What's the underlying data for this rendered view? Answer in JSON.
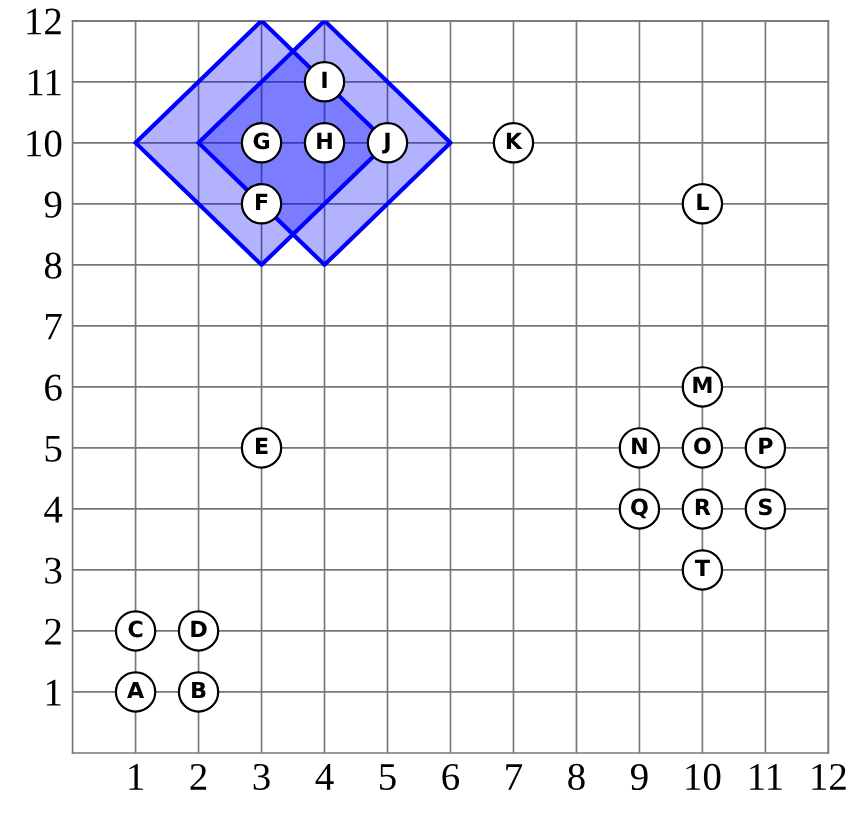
{
  "chart_data": {
    "type": "scatter",
    "xlim": [
      0,
      12
    ],
    "ylim": [
      0,
      12
    ],
    "xticks": [
      1,
      2,
      3,
      4,
      5,
      6,
      7,
      8,
      9,
      10,
      11,
      12
    ],
    "yticks": [
      1,
      2,
      3,
      4,
      5,
      6,
      7,
      8,
      9,
      10,
      11,
      12
    ],
    "grid": true,
    "series": [
      {
        "type": "area",
        "color": "#0000ff",
        "x": [
          1,
          3,
          5,
          3,
          1
        ],
        "values": [
          10,
          12,
          10,
          8,
          10
        ]
      },
      {
        "type": "area",
        "color": "#0000ff",
        "x": [
          2,
          4,
          6,
          4,
          2
        ],
        "values": [
          10,
          12,
          10,
          8,
          10
        ]
      },
      {
        "marker": "circle",
        "color": "#ffffff",
        "x": [
          1,
          2,
          1,
          2,
          3,
          3,
          3,
          4,
          4,
          5,
          7,
          10,
          10,
          9,
          10,
          11,
          9,
          10,
          11,
          10
        ],
        "values": [
          1,
          1,
          2,
          2,
          5,
          9,
          10,
          10,
          11,
          10,
          10,
          9,
          6,
          5,
          5,
          5,
          4,
          4,
          4,
          3
        ],
        "value_labels": [
          "A",
          "B",
          "C",
          "D",
          "E",
          "F",
          "G",
          "H",
          "I",
          "J",
          "K",
          "L",
          "M",
          "N",
          "O",
          "P",
          "Q",
          "R",
          "S",
          "T"
        ]
      }
    ]
  }
}
